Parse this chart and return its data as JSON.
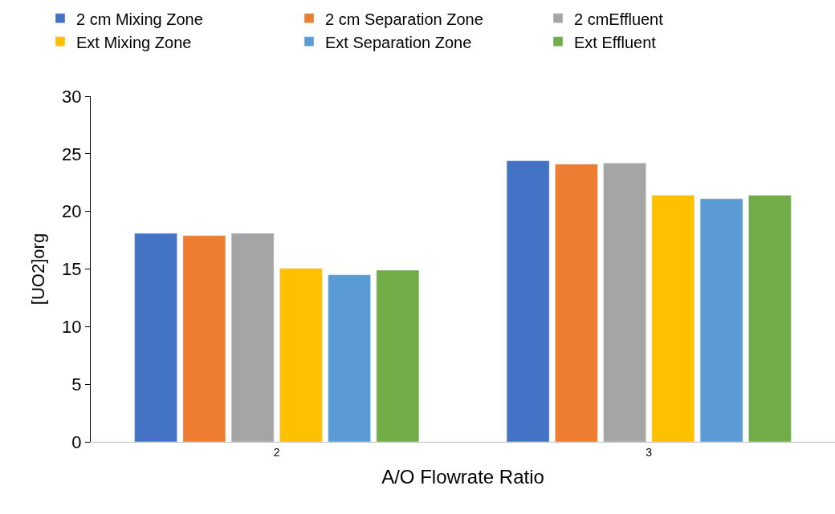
{
  "chart_data": {
    "type": "bar",
    "xlabel": "A/O Flowrate Ratio",
    "ylabel": "[UO2]org",
    "categories": [
      "2",
      "3"
    ],
    "series": [
      {
        "name": "2 cm Mixing Zone",
        "color": "#4472c4",
        "values": [
          18.1,
          24.4
        ]
      },
      {
        "name": "2 cm Separation Zone",
        "color": "#ed7d31",
        "values": [
          17.9,
          24.1
        ]
      },
      {
        "name": "2 cmEffluent",
        "color": "#a5a5a5",
        "values": [
          18.1,
          24.2
        ]
      },
      {
        "name": "Ext Mixing Zone",
        "color": "#ffc000",
        "values": [
          15.05,
          21.4
        ]
      },
      {
        "name": "Ext Separation Zone",
        "color": "#5b9bd5",
        "values": [
          14.5,
          21.1
        ]
      },
      {
        "name": "Ext Effluent",
        "color": "#70ad47",
        "values": [
          14.9,
          21.4
        ]
      }
    ],
    "ylim": [
      0,
      30
    ],
    "yticks": [
      0,
      5,
      10,
      15,
      20,
      25,
      30
    ],
    "legend": "top"
  }
}
